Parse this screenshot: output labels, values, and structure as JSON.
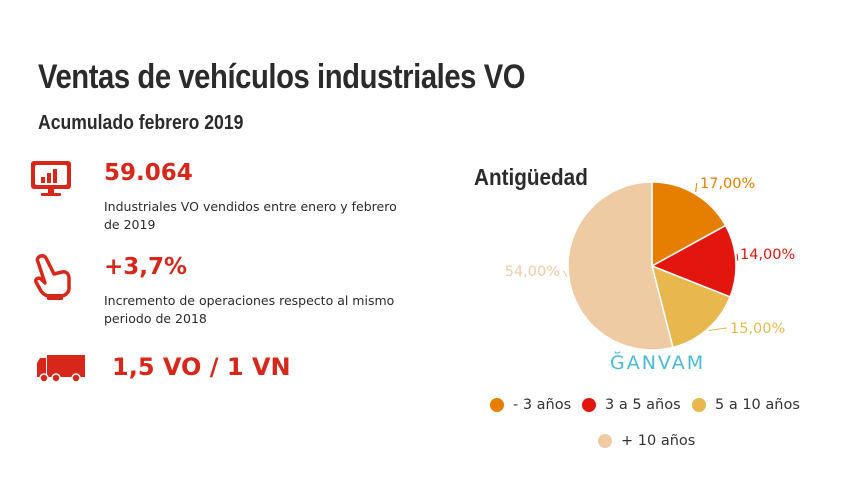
{
  "header": {
    "title": "Ventas de vehículos industriales VO",
    "subtitle": "Acumulado febrero 2019"
  },
  "stats": [
    {
      "icon": "monitor-chart-icon",
      "value": "59.064",
      "desc": "Industriales VO vendidos entre enero y febrero de 2019"
    },
    {
      "icon": "pointing-hand-icon",
      "value": "+3,7%",
      "desc": "Incremento de operaciones respecto al mismo periodo de 2018"
    },
    {
      "icon": "truck-icon",
      "value": "1,5 VO / 1 VN",
      "desc": ""
    }
  ],
  "brand": "ĞANVAM",
  "colors": {
    "accent": "#d7271b",
    "brand": "#4bbad8"
  },
  "chart_data": {
    "type": "pie",
    "title": "Antigüedad",
    "categories": [
      "- 3 años",
      "3 a 5 años",
      "5 a 10 años",
      "+ 10 años"
    ],
    "values": [
      17,
      14,
      15,
      54
    ],
    "labels": [
      "17,00%",
      "14,00%",
      "15,00%",
      "54,00%"
    ],
    "colors": [
      "#e67e00",
      "#e3150f",
      "#e8b84e",
      "#efcba4"
    ],
    "legend_position": "bottom"
  }
}
